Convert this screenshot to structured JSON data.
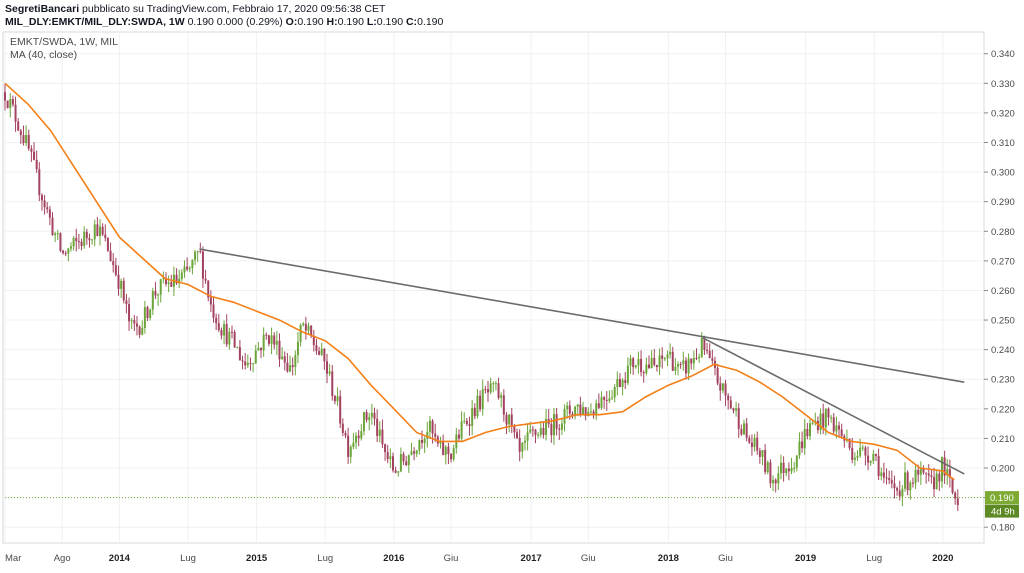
{
  "header": {
    "author": "SegretiBancari",
    "published": "pubblicato su TradingView.com, Febbraio 17, 2020 09:56:38 CET",
    "symbol": "MIL_DLY:EMKT/MIL_DLY:SWDA, 1W",
    "quote": "0.190 0.000 (0.29%)",
    "o_label": "O:",
    "o_value": "0.190",
    "h_label": "H:",
    "h_value": "0.190",
    "l_label": "L:",
    "l_value": "0.190",
    "c_label": "C:",
    "c_value": "0.190"
  },
  "legend": {
    "line1": "EMKT/SWDA, 1W, MIL",
    "line2": "MA (40, close)"
  },
  "colors": {
    "up": "#6ba539",
    "down": "#a3425e",
    "ma": "#f57f17",
    "trendline": "#6b6b6b",
    "grid": "#eef0f3",
    "price_badge": "#7caa33",
    "timer_badge": "#5e8a26"
  },
  "price_badge": {
    "price": "0.190",
    "timer": "4d 9h"
  },
  "chart_data": {
    "type": "candlestick",
    "x_axis": {
      "labels": [
        "Mar",
        "Ago",
        "2014",
        "Lug",
        "2015",
        "Lug",
        "2016",
        "Giu",
        "2017",
        "Giu",
        "2018",
        "Giu",
        "2019",
        "Lug",
        "2020"
      ],
      "bold_labels": [
        "2014",
        "2015",
        "2016",
        "2017",
        "2018",
        "2019",
        "2020"
      ],
      "range": [
        "2013-03",
        "2020-02"
      ]
    },
    "y_axis": {
      "ticks": [
        "0.180",
        "0.190",
        "0.200",
        "0.210",
        "0.220",
        "0.230",
        "0.240",
        "0.250",
        "0.260",
        "0.270",
        "0.280",
        "0.290",
        "0.300",
        "0.310",
        "0.320",
        "0.330",
        "0.340"
      ],
      "ylim": [
        0.175,
        0.347
      ],
      "position": "right"
    },
    "grid": true,
    "close_points": [
      [
        "2013-03",
        0.327
      ],
      [
        "2013-04",
        0.318
      ],
      [
        "2013-05",
        0.308
      ],
      [
        "2013-06",
        0.295
      ],
      [
        "2013-07",
        0.283
      ],
      [
        "2013-08",
        0.272
      ],
      [
        "2013-09",
        0.275
      ],
      [
        "2013-10",
        0.278
      ],
      [
        "2013-11",
        0.282
      ],
      [
        "2013-12",
        0.274
      ],
      [
        "2014-01",
        0.263
      ],
      [
        "2014-02",
        0.247
      ],
      [
        "2014-03",
        0.249
      ],
      [
        "2014-04",
        0.259
      ],
      [
        "2014-05",
        0.262
      ],
      [
        "2014-06",
        0.263
      ],
      [
        "2014-07",
        0.266
      ],
      [
        "2014-08",
        0.273
      ],
      [
        "2014-09",
        0.255
      ],
      [
        "2014-10",
        0.247
      ],
      [
        "2014-11",
        0.242
      ],
      [
        "2014-12",
        0.235
      ],
      [
        "2015-01",
        0.24
      ],
      [
        "2015-02",
        0.245
      ],
      [
        "2015-03",
        0.24
      ],
      [
        "2015-04",
        0.233
      ],
      [
        "2015-05",
        0.248
      ],
      [
        "2015-06",
        0.242
      ],
      [
        "2015-07",
        0.235
      ],
      [
        "2015-08",
        0.222
      ],
      [
        "2015-09",
        0.207
      ],
      [
        "2015-10",
        0.214
      ],
      [
        "2015-11",
        0.219
      ],
      [
        "2015-12",
        0.207
      ],
      [
        "2016-01",
        0.199
      ],
      [
        "2016-02",
        0.203
      ],
      [
        "2016-03",
        0.209
      ],
      [
        "2016-04",
        0.214
      ],
      [
        "2016-05",
        0.206
      ],
      [
        "2016-06",
        0.205
      ],
      [
        "2016-07",
        0.214
      ],
      [
        "2016-08",
        0.22
      ],
      [
        "2016-09",
        0.225
      ],
      [
        "2016-10",
        0.226
      ],
      [
        "2016-11",
        0.216
      ],
      [
        "2016-12",
        0.204
      ],
      [
        "2017-01",
        0.211
      ],
      [
        "2017-02",
        0.213
      ],
      [
        "2017-03",
        0.215
      ],
      [
        "2017-04",
        0.218
      ],
      [
        "2017-05",
        0.221
      ],
      [
        "2017-06",
        0.219
      ],
      [
        "2017-07",
        0.223
      ],
      [
        "2017-08",
        0.226
      ],
      [
        "2017-09",
        0.231
      ],
      [
        "2017-10",
        0.236
      ],
      [
        "2017-11",
        0.235
      ],
      [
        "2017-12",
        0.234
      ],
      [
        "2018-01",
        0.239
      ],
      [
        "2018-02",
        0.232
      ],
      [
        "2018-03",
        0.236
      ],
      [
        "2018-04",
        0.241
      ],
      [
        "2018-05",
        0.232
      ],
      [
        "2018-06",
        0.224
      ],
      [
        "2018-07",
        0.218
      ],
      [
        "2018-08",
        0.209
      ],
      [
        "2018-09",
        0.205
      ],
      [
        "2018-10",
        0.196
      ],
      [
        "2018-11",
        0.2
      ],
      [
        "2018-12",
        0.203
      ],
      [
        "2019-01",
        0.212
      ],
      [
        "2019-02",
        0.216
      ],
      [
        "2019-03",
        0.217
      ],
      [
        "2019-04",
        0.212
      ],
      [
        "2019-05",
        0.206
      ],
      [
        "2019-06",
        0.205
      ],
      [
        "2019-07",
        0.205
      ],
      [
        "2019-08",
        0.194
      ],
      [
        "2019-09",
        0.193
      ],
      [
        "2019-10",
        0.196
      ],
      [
        "2019-11",
        0.197
      ],
      [
        "2019-12",
        0.194
      ],
      [
        "2020-01",
        0.201
      ],
      [
        "2020-02",
        0.19
      ]
    ],
    "ma_points": [
      [
        "2013-03",
        0.33
      ],
      [
        "2013-05",
        0.323
      ],
      [
        "2013-07",
        0.314
      ],
      [
        "2013-09",
        0.302
      ],
      [
        "2013-11",
        0.29
      ],
      [
        "2014-01",
        0.278
      ],
      [
        "2014-03",
        0.271
      ],
      [
        "2014-05",
        0.264
      ],
      [
        "2014-07",
        0.262
      ],
      [
        "2014-09",
        0.258
      ],
      [
        "2014-11",
        0.256
      ],
      [
        "2015-01",
        0.253
      ],
      [
        "2015-03",
        0.25
      ],
      [
        "2015-05",
        0.246
      ],
      [
        "2015-07",
        0.243
      ],
      [
        "2015-09",
        0.237
      ],
      [
        "2015-11",
        0.228
      ],
      [
        "2016-01",
        0.22
      ],
      [
        "2016-03",
        0.212
      ],
      [
        "2016-05",
        0.209
      ],
      [
        "2016-07",
        0.209
      ],
      [
        "2016-09",
        0.212
      ],
      [
        "2016-11",
        0.214
      ],
      [
        "2017-01",
        0.215
      ],
      [
        "2017-03",
        0.216
      ],
      [
        "2017-05",
        0.218
      ],
      [
        "2017-07",
        0.218
      ],
      [
        "2017-09",
        0.219
      ],
      [
        "2017-11",
        0.224
      ],
      [
        "2018-01",
        0.228
      ],
      [
        "2018-03",
        0.231
      ],
      [
        "2018-05",
        0.235
      ],
      [
        "2018-07",
        0.233
      ],
      [
        "2018-09",
        0.229
      ],
      [
        "2018-11",
        0.224
      ],
      [
        "2019-01",
        0.218
      ],
      [
        "2019-03",
        0.212
      ],
      [
        "2019-05",
        0.209
      ],
      [
        "2019-07",
        0.208
      ],
      [
        "2019-09",
        0.206
      ],
      [
        "2019-11",
        0.2
      ],
      [
        "2020-01",
        0.199
      ],
      [
        "2020-02",
        0.196
      ]
    ],
    "trendlines": [
      {
        "from": [
          "2014-08",
          0.274
        ],
        "to": [
          "2020-02",
          0.229
        ]
      },
      {
        "from": [
          "2018-04",
          0.244
        ],
        "to": [
          "2020-02",
          0.198
        ]
      }
    ],
    "last_price": 0.19,
    "last_price_line": "dotted"
  }
}
